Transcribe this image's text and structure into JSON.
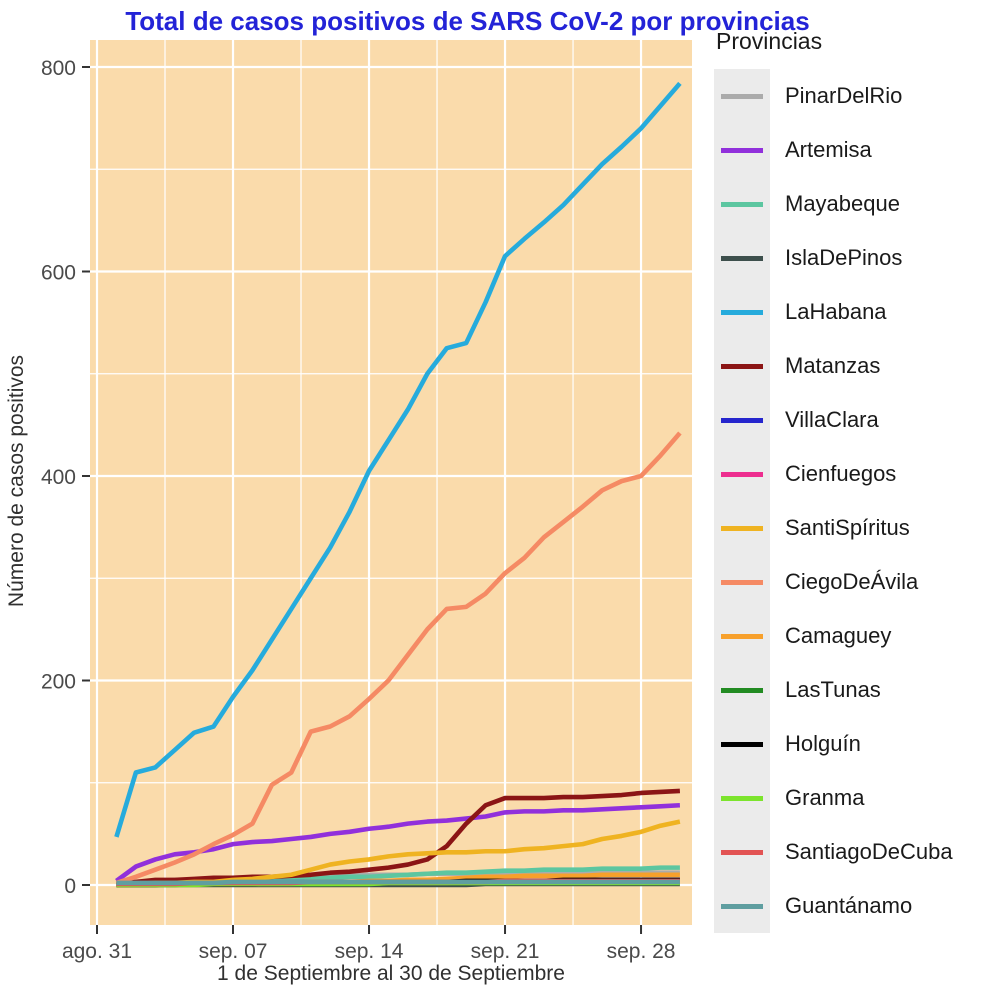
{
  "chart_data": {
    "type": "line",
    "title": "Total de casos positivos de SARS CoV-2 por provincias",
    "xlabel": "1 de Septiembre al 30 de Septiembre",
    "ylabel": "Número de casos positivos",
    "legend_title": "Provincias",
    "legend_position": "right",
    "grid": true,
    "panel_background": "#FADBAB",
    "grid_color": "#FFFFFF",
    "x_unit": "days, Sep 1 to Sep 30 2020 (day 0 = ago. 31)",
    "x_days": [
      1,
      2,
      3,
      4,
      5,
      6,
      7,
      8,
      9,
      10,
      11,
      12,
      13,
      14,
      15,
      16,
      17,
      18,
      19,
      20,
      21,
      22,
      23,
      24,
      25,
      26,
      27,
      28,
      29,
      30
    ],
    "x_ticks": [
      {
        "day": 0,
        "label": "ago. 31"
      },
      {
        "day": 7,
        "label": "sep. 07"
      },
      {
        "day": 14,
        "label": "sep. 14"
      },
      {
        "day": 21,
        "label": "sep. 21"
      },
      {
        "day": 28,
        "label": "sep. 28"
      }
    ],
    "x_minor_days": [
      3.5,
      10.5,
      17.5,
      24.5
    ],
    "y_ticks": [
      {
        "value": 0,
        "label": "0"
      },
      {
        "value": 200,
        "label": "200"
      },
      {
        "value": 400,
        "label": "400"
      },
      {
        "value": 600,
        "label": "600"
      },
      {
        "value": 800,
        "label": "800"
      }
    ],
    "y_minor_values": [
      100,
      300,
      500,
      700
    ],
    "ylim": [
      0,
      800
    ],
    "series": [
      {
        "name": "PinarDelRio",
        "color": "#ABABAB",
        "values": [
          2,
          3,
          4,
          5,
          5,
          6,
          6,
          7,
          7,
          8,
          8,
          9,
          9,
          10,
          10,
          10,
          11,
          11,
          11,
          12,
          12,
          12,
          12,
          12,
          12,
          12,
          12,
          12,
          12,
          12
        ]
      },
      {
        "name": "Artemisa",
        "color": "#9130DB",
        "values": [
          4,
          18,
          25,
          30,
          32,
          35,
          40,
          42,
          43,
          45,
          47,
          50,
          52,
          55,
          57,
          60,
          62,
          63,
          65,
          67,
          71,
          72,
          72,
          73,
          73,
          74,
          75,
          76,
          77,
          78
        ]
      },
      {
        "name": "Mayabeque",
        "color": "#5CC6A0",
        "values": [
          1,
          2,
          2,
          3,
          3,
          4,
          4,
          5,
          5,
          5,
          6,
          7,
          8,
          8,
          9,
          10,
          11,
          12,
          12,
          13,
          14,
          14,
          15,
          15,
          15,
          16,
          16,
          16,
          17,
          17
        ]
      },
      {
        "name": "IslaDePinos",
        "color": "#3D4F4C",
        "values": [
          0,
          0,
          0,
          0,
          0,
          0,
          0,
          0,
          0,
          0,
          0,
          0,
          0,
          0,
          0,
          0,
          0,
          0,
          0,
          1,
          1,
          1,
          1,
          1,
          1,
          1,
          1,
          1,
          1,
          1
        ]
      },
      {
        "name": "LaHabana",
        "color": "#26ABDC",
        "values": [
          47,
          110,
          115,
          132,
          149,
          155,
          184,
          210,
          240,
          270,
          300,
          330,
          365,
          405,
          435,
          465,
          500,
          525,
          530,
          570,
          615,
          632,
          648,
          665,
          685,
          705,
          722,
          740,
          762,
          784
        ]
      },
      {
        "name": "Matanzas",
        "color": "#8B1515",
        "values": [
          2,
          3,
          5,
          5,
          6,
          7,
          7,
          8,
          8,
          9,
          10,
          12,
          13,
          15,
          17,
          20,
          25,
          38,
          60,
          78,
          85,
          85,
          85,
          86,
          86,
          87,
          88,
          90,
          91,
          92
        ]
      },
      {
        "name": "VillaClara",
        "color": "#2525CD",
        "values": [
          1,
          1,
          1,
          2,
          2,
          2,
          2,
          2,
          3,
          3,
          3,
          3,
          3,
          3,
          3,
          3,
          4,
          4,
          4,
          4,
          4,
          4,
          4,
          4,
          5,
          5,
          5,
          5,
          5,
          5
        ]
      },
      {
        "name": "Cienfuegos",
        "color": "#ED2E8F",
        "values": [
          0,
          0,
          0,
          1,
          1,
          1,
          1,
          1,
          1,
          1,
          2,
          2,
          2,
          2,
          2,
          2,
          2,
          2,
          3,
          3,
          3,
          3,
          3,
          3,
          3,
          3,
          3,
          3,
          4,
          4
        ]
      },
      {
        "name": "SantiSpíritus",
        "color": "#EFB321",
        "values": [
          1,
          1,
          2,
          2,
          3,
          3,
          5,
          6,
          8,
          10,
          15,
          20,
          23,
          25,
          28,
          30,
          31,
          32,
          32,
          33,
          33,
          35,
          36,
          38,
          40,
          45,
          48,
          52,
          58,
          62
        ]
      },
      {
        "name": "CiegoDeÁvila",
        "color": "#F58A64",
        "values": [
          2,
          8,
          15,
          22,
          30,
          40,
          49,
          60,
          98,
          110,
          150,
          155,
          165,
          182,
          200,
          225,
          250,
          270,
          272,
          285,
          305,
          320,
          340,
          355,
          370,
          386,
          395,
          400,
          420,
          442
        ]
      },
      {
        "name": "Camaguey",
        "color": "#F7A02B",
        "values": [
          0,
          0,
          1,
          1,
          1,
          1,
          2,
          2,
          2,
          2,
          3,
          3,
          3,
          4,
          4,
          5,
          5,
          6,
          7,
          8,
          8,
          9,
          9,
          9,
          9,
          10,
          10,
          10,
          10,
          10
        ]
      },
      {
        "name": "LasTunas",
        "color": "#228B22",
        "values": [
          0,
          0,
          0,
          0,
          1,
          1,
          1,
          1,
          1,
          1,
          1,
          1,
          2,
          2,
          2,
          2,
          2,
          2,
          2,
          2,
          2,
          3,
          3,
          3,
          3,
          3,
          3,
          3,
          3,
          3
        ]
      },
      {
        "name": "Holguín",
        "color": "#000000",
        "values": [
          0,
          0,
          0,
          1,
          1,
          1,
          1,
          1,
          2,
          2,
          2,
          2,
          2,
          2,
          3,
          3,
          3,
          3,
          4,
          4,
          4,
          4,
          4,
          5,
          5,
          5,
          5,
          5,
          5,
          5
        ]
      },
      {
        "name": "Granma",
        "color": "#7CE42D",
        "values": [
          0,
          0,
          0,
          0,
          0,
          1,
          1,
          1,
          1,
          1,
          1,
          1,
          1,
          1,
          2,
          2,
          2,
          2,
          2,
          2,
          2,
          2,
          2,
          2,
          2,
          2,
          2,
          2,
          2,
          2
        ]
      },
      {
        "name": "SantiagoDeCuba",
        "color": "#E25353",
        "values": [
          1,
          1,
          1,
          1,
          2,
          2,
          2,
          2,
          2,
          2,
          3,
          3,
          3,
          3,
          3,
          3,
          3,
          3,
          3,
          3,
          4,
          4,
          4,
          4,
          4,
          4,
          4,
          4,
          4,
          4
        ]
      },
      {
        "name": "Guantánamo",
        "color": "#5F9EA0",
        "values": [
          2,
          2,
          2,
          2,
          2,
          2,
          3,
          3,
          3,
          3,
          3,
          3,
          3,
          3,
          3,
          3,
          3,
          3,
          3,
          3,
          3,
          3,
          3,
          3,
          3,
          3,
          3,
          3,
          3,
          3
        ]
      }
    ]
  },
  "colors": {
    "title_text": "#2323D7",
    "panel_background": "#FADBAB",
    "gridline": "#FFFFFF",
    "legend_key_background": "#EBEBEB",
    "tick_text": "#4A4A4A"
  }
}
